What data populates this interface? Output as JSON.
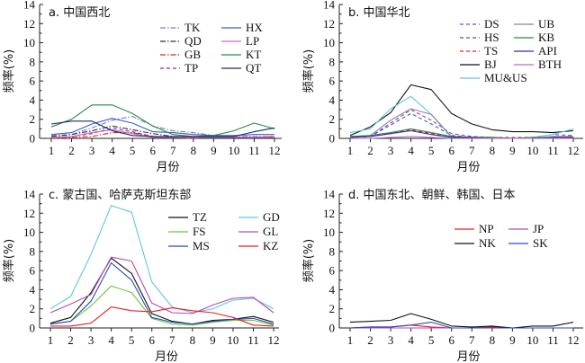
{
  "chart_data": [
    {
      "type": "line",
      "title": "a. 中国西北",
      "xlabel": "月份",
      "ylabel": "频率(%)",
      "ylim": [
        0,
        14
      ],
      "yticks": [
        0,
        2,
        4,
        6,
        8,
        10,
        12,
        14
      ],
      "categories": [
        1,
        2,
        3,
        4,
        5,
        6,
        7,
        8,
        9,
        10,
        11,
        12
      ],
      "legend_position": "top-right",
      "series": [
        {
          "name": "TK",
          "color": "#7b7bd6",
          "dash": "dashdot",
          "values": [
            0.3,
            0.4,
            1.1,
            1.9,
            2.3,
            1.3,
            0.8,
            0.6,
            0.3,
            0.2,
            0.2,
            0.2
          ]
        },
        {
          "name": "QD",
          "color": "#333333",
          "dash": "dashdot",
          "values": [
            0.2,
            0.4,
            0.8,
            1.3,
            0.9,
            0.5,
            0.2,
            0.2,
            0.1,
            0.1,
            0.1,
            0.1
          ]
        },
        {
          "name": "GB",
          "color": "#e82020",
          "dash": "dashdot",
          "values": [
            0.0,
            0.1,
            0.2,
            0.6,
            0.6,
            0.2,
            0.1,
            0.0,
            0.3,
            0.1,
            0.1,
            0.2
          ]
        },
        {
          "name": "TP",
          "color": "#8a2aa8",
          "dash": "dash",
          "values": [
            0.1,
            0.2,
            0.5,
            1.1,
            0.7,
            0.2,
            0.1,
            0.1,
            0.1,
            0.1,
            0.1,
            0.1
          ]
        },
        {
          "name": "HX",
          "color": "#3a62b8",
          "dash": "solid",
          "values": [
            0.4,
            0.6,
            1.5,
            2.1,
            1.6,
            0.7,
            0.6,
            0.4,
            0.3,
            0.3,
            0.4,
            0.4
          ]
        },
        {
          "name": "LP",
          "color": "#c86ac8",
          "dash": "solid",
          "values": [
            0.1,
            0.2,
            0.6,
            0.9,
            0.5,
            0.1,
            0.1,
            0.1,
            0.1,
            0.1,
            0.1,
            0.1
          ]
        },
        {
          "name": "KT",
          "color": "#2a8a3a",
          "dash": "solid",
          "values": [
            1.2,
            2.0,
            3.5,
            3.5,
            2.6,
            1.3,
            0.4,
            0.2,
            0.3,
            0.8,
            1.6,
            1.0
          ]
        },
        {
          "name": "QT",
          "color": "#1a2a6a",
          "dash": "solid",
          "values": [
            1.5,
            1.8,
            1.8,
            0.8,
            0.3,
            0.2,
            0.2,
            0.2,
            0.2,
            0.2,
            0.7,
            1.1
          ]
        }
      ]
    },
    {
      "type": "line",
      "title": "b. 中国华北",
      "xlabel": "月份",
      "ylabel": "频率(%)",
      "ylim": [
        0,
        14
      ],
      "yticks": [
        0,
        2,
        4,
        6,
        8,
        10,
        12,
        14
      ],
      "categories": [
        1,
        2,
        3,
        4,
        5,
        6,
        7,
        8,
        9,
        10,
        11,
        12
      ],
      "legend_position": "top-right",
      "series": [
        {
          "name": "DS",
          "color": "#9a3aa8",
          "dash": "dash",
          "values": [
            0.1,
            0.2,
            1.6,
            3.0,
            1.9,
            0.5,
            0.2,
            0.1,
            0.1,
            0.1,
            0.4,
            0.3
          ]
        },
        {
          "name": "HS",
          "color": "#3a5ac8",
          "dash": "dash",
          "values": [
            0.1,
            0.2,
            1.4,
            2.6,
            1.5,
            0.3,
            0.1,
            0.1,
            0.0,
            0.0,
            0.1,
            0.2
          ]
        },
        {
          "name": "TS",
          "color": "#e82020",
          "dash": "dash",
          "values": [
            0.1,
            0.2,
            0.5,
            0.9,
            0.5,
            0.2,
            0.1,
            0.1,
            0.0,
            0.0,
            0.1,
            0.1
          ]
        },
        {
          "name": "BJ",
          "color": "#111111",
          "dash": "solid",
          "values": [
            0.3,
            1.2,
            2.7,
            5.6,
            5.1,
            2.6,
            1.5,
            0.9,
            0.7,
            0.7,
            0.6,
            0.8
          ]
        },
        {
          "name": "MU&US",
          "color": "#5ec8dc",
          "dash": "solid",
          "values": [
            0.6,
            1.0,
            3.1,
            4.4,
            2.5,
            0.1,
            0.1,
            0.1,
            0.0,
            0.1,
            0.4,
            1.0
          ]
        },
        {
          "name": "UB",
          "color": "#888888",
          "dash": "solid",
          "values": [
            0.2,
            0.3,
            1.9,
            3.1,
            2.5,
            0.2,
            0.1,
            0.1,
            0.0,
            0.0,
            0.2,
            0.2
          ]
        },
        {
          "name": "KB",
          "color": "#2a8a3a",
          "dash": "solid",
          "values": [
            0.2,
            0.3,
            0.6,
            1.0,
            0.6,
            0.2,
            0.1,
            0.1,
            0.0,
            0.1,
            0.1,
            0.1
          ]
        },
        {
          "name": "API",
          "color": "#3a2aa8",
          "dash": "solid",
          "values": [
            0.1,
            0.2,
            0.5,
            0.8,
            0.4,
            0.1,
            0.1,
            0.0,
            0.0,
            0.0,
            0.1,
            0.1
          ]
        },
        {
          "name": "BTH",
          "color": "#b86ac8",
          "dash": "solid",
          "values": [
            0.0,
            0.0,
            0.1,
            0.2,
            0.1,
            0.0,
            0.0,
            0.0,
            0.0,
            0.0,
            0.0,
            0.0
          ]
        }
      ]
    },
    {
      "type": "line",
      "title": "c. 蒙古国、哈萨克斯坦东部",
      "xlabel": "月份",
      "ylabel": "频率(%)",
      "ylim": [
        0,
        14
      ],
      "yticks": [
        0,
        2,
        4,
        6,
        8,
        10,
        12,
        14
      ],
      "categories": [
        1,
        2,
        3,
        4,
        5,
        6,
        7,
        8,
        9,
        10,
        11,
        12
      ],
      "legend_position": "top-right",
      "series": [
        {
          "name": "TZ",
          "color": "#111111",
          "dash": "solid",
          "values": [
            0.5,
            1.1,
            3.7,
            7.3,
            5.7,
            1.5,
            0.7,
            0.4,
            0.8,
            0.9,
            1.2,
            0.6
          ]
        },
        {
          "name": "FS",
          "color": "#6ac83a",
          "dash": "solid",
          "values": [
            0.4,
            0.7,
            2.3,
            4.4,
            3.7,
            1.0,
            0.4,
            0.3,
            0.6,
            0.8,
            0.8,
            0.3
          ]
        },
        {
          "name": "MS",
          "color": "#2a4ab8",
          "dash": "solid",
          "values": [
            0.4,
            0.7,
            2.8,
            6.8,
            5.0,
            1.1,
            0.6,
            0.4,
            0.7,
            0.9,
            1.0,
            0.4
          ]
        },
        {
          "name": "GD",
          "color": "#5ec8dc",
          "dash": "solid",
          "values": [
            2.0,
            3.3,
            7.7,
            12.8,
            12.1,
            4.8,
            2.2,
            1.6,
            2.0,
            2.9,
            3.1,
            2.0
          ]
        },
        {
          "name": "GL",
          "color": "#b04ab8",
          "dash": "solid",
          "values": [
            1.6,
            2.5,
            3.5,
            7.4,
            7.0,
            2.6,
            1.6,
            1.5,
            2.4,
            3.1,
            3.2,
            1.6
          ]
        },
        {
          "name": "KZ",
          "color": "#e82020",
          "dash": "solid",
          "values": [
            0.2,
            0.2,
            0.5,
            2.2,
            1.8,
            1.7,
            2.1,
            1.8,
            1.6,
            1.1,
            0.3,
            0.2
          ]
        }
      ]
    },
    {
      "type": "line",
      "title": "d. 中国东北、朝鲜、韩国、日本",
      "xlabel": "月份",
      "ylabel": "频率(%)",
      "ylim": [
        0,
        14
      ],
      "yticks": [
        0,
        2,
        4,
        6,
        8,
        10,
        12,
        14
      ],
      "categories": [
        1,
        2,
        3,
        4,
        5,
        6,
        7,
        8,
        9,
        10,
        11,
        12
      ],
      "legend_position": "top-right",
      "series": [
        {
          "name": "NP",
          "color": "#e82020",
          "dash": "solid",
          "values": [
            0.0,
            0.1,
            0.1,
            0.3,
            0.1,
            0.0,
            0.0,
            0.1,
            0.0,
            0.0,
            0.0,
            0.0
          ]
        },
        {
          "name": "NK",
          "color": "#111111",
          "dash": "solid",
          "values": [
            0.6,
            0.7,
            0.8,
            1.5,
            0.9,
            0.2,
            0.1,
            0.2,
            0.0,
            0.2,
            0.2,
            0.6
          ]
        },
        {
          "name": "JP",
          "color": "#b04ab8",
          "dash": "solid",
          "values": [
            0.0,
            0.0,
            0.0,
            0.0,
            0.0,
            0.0,
            0.0,
            0.0,
            0.0,
            0.0,
            0.0,
            0.0
          ]
        },
        {
          "name": "SK",
          "color": "#2a4ab8",
          "dash": "solid",
          "values": [
            0.0,
            0.1,
            0.1,
            0.3,
            0.6,
            0.0,
            0.0,
            0.0,
            0.0,
            0.0,
            0.0,
            0.0
          ]
        }
      ]
    }
  ]
}
